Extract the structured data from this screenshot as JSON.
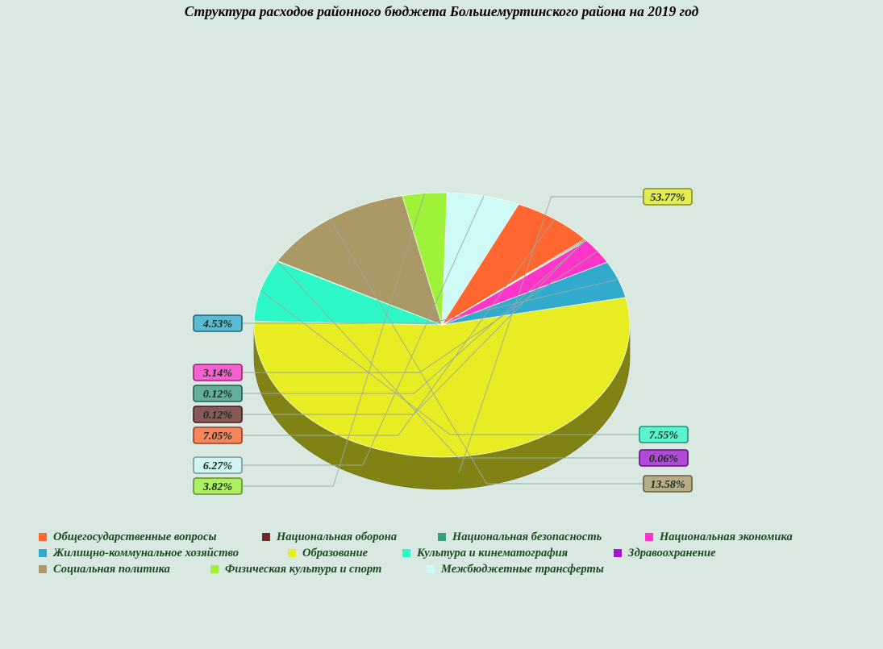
{
  "chart_data": {
    "type": "pie",
    "title": "Структура расходов районного бюджета Большемуртинского района на 2019 год",
    "slices": [
      {
        "label": "Образование",
        "value": 53.77,
        "display": "53.77%",
        "color": "#e8ec22"
      },
      {
        "label": "Культура и кинематография",
        "value": 7.55,
        "display": "7.55%",
        "color": "#2ef8c8"
      },
      {
        "label": "Здравоохранение",
        "value": 0.06,
        "display": "0.06%",
        "color": "#a316d4"
      },
      {
        "label": "Социальная политика",
        "value": 13.58,
        "display": "13.58%",
        "color": "#aa9866"
      },
      {
        "label": "Физическая культура и спорт",
        "value": 3.82,
        "display": "3.82%",
        "color": "#9ef23a"
      },
      {
        "label": "Межбюджетные трансферты",
        "value": 6.27,
        "display": "6.27%",
        "color": "#cefaf8"
      },
      {
        "label": "Общегосударственные вопросы",
        "value": 7.05,
        "display": "7.05%",
        "color": "#ff6630"
      },
      {
        "label": "Национальная оборона",
        "value": 0.12,
        "display": "0.12%",
        "color": "#6a2a2a"
      },
      {
        "label": "Национальная безопасность",
        "value": 0.12,
        "display": "0.12%",
        "color": "#3a9a84"
      },
      {
        "label": "Национальная экономика",
        "value": 3.14,
        "display": "3.14%",
        "color": "#ff34c8"
      },
      {
        "label": "Жилищно-коммунальное хозяйство",
        "value": 4.53,
        "display": "4.53%",
        "color": "#32aacc"
      }
    ],
    "legend_rows": [
      [
        "Общегосударственные вопросы",
        "Национальная оборона",
        "Национальная безопасность",
        "Национальная экономика"
      ],
      [
        "Жилищно-коммунальное хозяйство",
        "Образование",
        "Культура и кинематография",
        "Здравоохранение"
      ],
      [
        "Социальная политика",
        "Физическая культура и спорт",
        "Межбюджетные трансферты"
      ]
    ],
    "legend_placement": "bottom"
  }
}
